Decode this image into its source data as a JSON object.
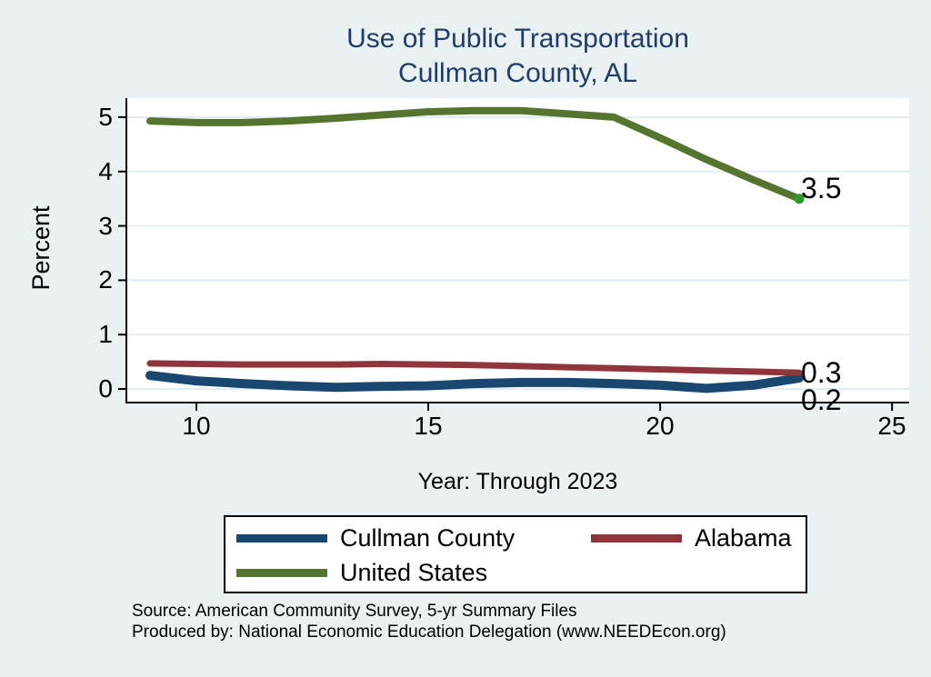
{
  "colors": {
    "background": "#e9f1f3",
    "plot_background": "#ffffff",
    "grid": "#e4eef2",
    "axis": "#000000",
    "title_text": "#1f3d68",
    "navy": "#1a476f",
    "maroon": "#90353b",
    "olive_green": "#55752f",
    "end_marker_green": "#2e9b2e"
  },
  "chart_data": {
    "type": "line",
    "title": "Use of Public Transportation",
    "subtitle": "Cullman County, AL",
    "xlabel": "Year: Through 2023",
    "ylabel": "Percent",
    "grid": true,
    "legend_position": "bottom",
    "xlim": [
      8.49,
      25.37
    ],
    "ylim": [
      -0.25,
      5.35
    ],
    "x_ticks": [
      10,
      15,
      20,
      25
    ],
    "y_ticks": [
      0,
      1,
      2,
      3,
      4,
      5
    ],
    "x": [
      9,
      10,
      11,
      12,
      13,
      14,
      15,
      16,
      17,
      18,
      19,
      20,
      21,
      22,
      23
    ],
    "series": [
      {
        "name": "Cullman County",
        "color": "#1a476f",
        "line_width": 10,
        "values": [
          0.25,
          0.15,
          0.1,
          0.06,
          0.03,
          0.05,
          0.06,
          0.1,
          0.12,
          0.12,
          0.1,
          0.07,
          0.01,
          0.07,
          0.2
        ],
        "end_label": "0.2"
      },
      {
        "name": "Alabama",
        "color": "#90353b",
        "line_width": 7,
        "values": [
          0.47,
          0.46,
          0.45,
          0.45,
          0.45,
          0.46,
          0.45,
          0.44,
          0.42,
          0.4,
          0.38,
          0.36,
          0.34,
          0.32,
          0.3
        ],
        "end_label": "0.3"
      },
      {
        "name": "United States",
        "color": "#55752f",
        "line_width": 8,
        "values": [
          4.93,
          4.9,
          4.9,
          4.93,
          4.98,
          5.04,
          5.1,
          5.12,
          5.12,
          5.06,
          5.0,
          4.62,
          4.22,
          3.85,
          3.5
        ],
        "end_label": "3.5",
        "end_marker_color": "#2e9b2e"
      }
    ]
  },
  "legend": {
    "items": [
      {
        "label": "Cullman County",
        "color": "#1a476f"
      },
      {
        "label": "Alabama",
        "color": "#90353b"
      },
      {
        "label": "United States",
        "color": "#55752f"
      }
    ]
  },
  "source": {
    "line1": "Source: American Community Survey, 5-yr Summary Files",
    "line2": "Produced by: National Economic Education Delegation (www.NEEDEcon.org)"
  }
}
